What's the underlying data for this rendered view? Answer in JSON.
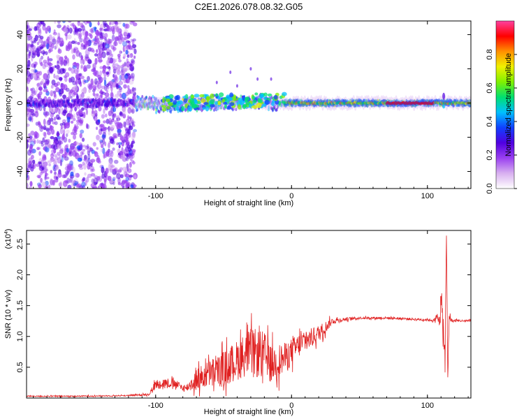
{
  "chart_data": [
    {
      "type": "heatmap",
      "title": "C2E1.2026.078.08.32.G05",
      "xlabel": "Height of straight line (km)",
      "ylabel": "Frequency (Hz)",
      "xlim": [
        -195,
        132
      ],
      "ylim": [
        -50,
        48
      ],
      "xticks": [
        -100,
        0,
        100
      ],
      "xtick_labels": [
        "-100",
        "0",
        "100"
      ],
      "yticks": [
        -40,
        -20,
        0,
        20,
        40
      ],
      "ytick_labels": [
        "-40",
        "-20",
        "0",
        "20",
        "40"
      ],
      "colorbar": {
        "label": "Normalized spectral amplitude",
        "range": [
          0,
          1
        ],
        "ticks": [
          0.0,
          0.2,
          0.4,
          0.6,
          0.8
        ],
        "tick_labels": [
          "0.0",
          "0.2",
          "0.4",
          "0.6",
          "0.8"
        ],
        "colors": [
          "#ffffff",
          "#d8b0f0",
          "#9a40f0",
          "#5000e0",
          "#1040ff",
          "#00c0ff",
          "#00e070",
          "#80f000",
          "#f0f000",
          "#ff9000",
          "#ff0000",
          "#ff40a0"
        ]
      },
      "features": {
        "noise_region_x": [
          -195,
          -115
        ],
        "signal_center_hz": 0,
        "strong_signal_x": [
          -5,
          132
        ]
      }
    },
    {
      "type": "line",
      "xlabel": "Height of straight line (km)",
      "ylabel": "SNR (10 * v/v)",
      "y_multiplier_label": "(x10",
      "y_multiplier_exp": "4",
      "xlim": [
        -195,
        132
      ],
      "ylim": [
        0,
        2.72
      ],
      "xticks": [
        -100,
        0,
        100
      ],
      "xtick_labels": [
        "-100",
        "0",
        "100"
      ],
      "yticks": [
        0.5,
        1.0,
        1.5,
        2.0,
        2.5
      ],
      "ytick_labels": [
        "0.5",
        "1.0",
        "1.5",
        "2.0",
        "2.5"
      ],
      "color": "#e02020",
      "series": [
        {
          "name": "SNR",
          "x": [
            -195,
            -160,
            -120,
            -105,
            -100,
            -92,
            -85,
            -78,
            -70,
            -62,
            -55,
            -48,
            -42,
            -36,
            -30,
            -25,
            -20,
            -15,
            -10,
            -5,
            0,
            5,
            10,
            15,
            20,
            25,
            30,
            40,
            50,
            60,
            70,
            80,
            90,
            100,
            105,
            108,
            110,
            112,
            113,
            114,
            115,
            116,
            118,
            122,
            126,
            132
          ],
          "y": [
            0.03,
            0.03,
            0.04,
            0.06,
            0.22,
            0.25,
            0.22,
            0.15,
            0.3,
            0.38,
            0.42,
            0.5,
            0.58,
            0.68,
            0.75,
            0.72,
            0.7,
            0.55,
            0.6,
            0.65,
            0.75,
            0.85,
            0.92,
            0.98,
            1.05,
            1.15,
            1.25,
            1.28,
            1.3,
            1.3,
            1.3,
            1.29,
            1.28,
            1.27,
            1.26,
            1.3,
            1.5,
            1.05,
            0.55,
            2.65,
            0.3,
            1.35,
            1.25,
            1.26,
            1.25,
            1.26
          ],
          "jitter": [
            0.01,
            0.01,
            0.01,
            0.02,
            0.08,
            0.08,
            0.07,
            0.05,
            0.18,
            0.22,
            0.26,
            0.3,
            0.32,
            0.35,
            0.38,
            0.4,
            0.38,
            0.3,
            0.28,
            0.25,
            0.22,
            0.2,
            0.18,
            0.16,
            0.14,
            0.1,
            0.05,
            0.03,
            0.02,
            0.02,
            0.02,
            0.02,
            0.02,
            0.02,
            0.02,
            0.15,
            0.3,
            0.35,
            0.25,
            0.1,
            0.1,
            0.1,
            0.03,
            0.02,
            0.02,
            0.02
          ]
        }
      ]
    }
  ]
}
